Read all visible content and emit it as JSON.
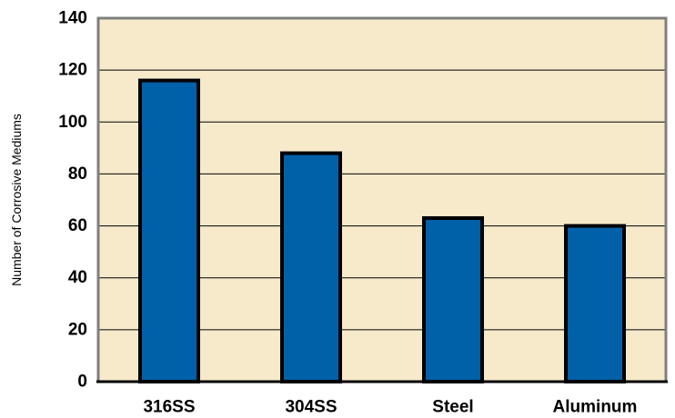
{
  "chart_data": {
    "type": "bar",
    "title": "",
    "xlabel": "",
    "ylabel": "Number of Corrosive Mediums",
    "categories": [
      "316SS",
      "304SS",
      "Steel",
      "Aluminum"
    ],
    "values": [
      116,
      88,
      63,
      60
    ],
    "ylim": [
      0,
      140
    ],
    "yticks": [
      0,
      20,
      40,
      60,
      80,
      100,
      120,
      140
    ],
    "ytick_labels": [
      "0",
      "20",
      "40",
      "60",
      "80",
      "100",
      "120",
      "140"
    ],
    "grid": "horizontal",
    "legend": "none",
    "colors": {
      "bar_fill": "#0060a8",
      "bar_stroke": "#000000",
      "plot_background": "#f7eacb",
      "grid_line": "#000000",
      "frame": "#7f7f7f"
    }
  }
}
